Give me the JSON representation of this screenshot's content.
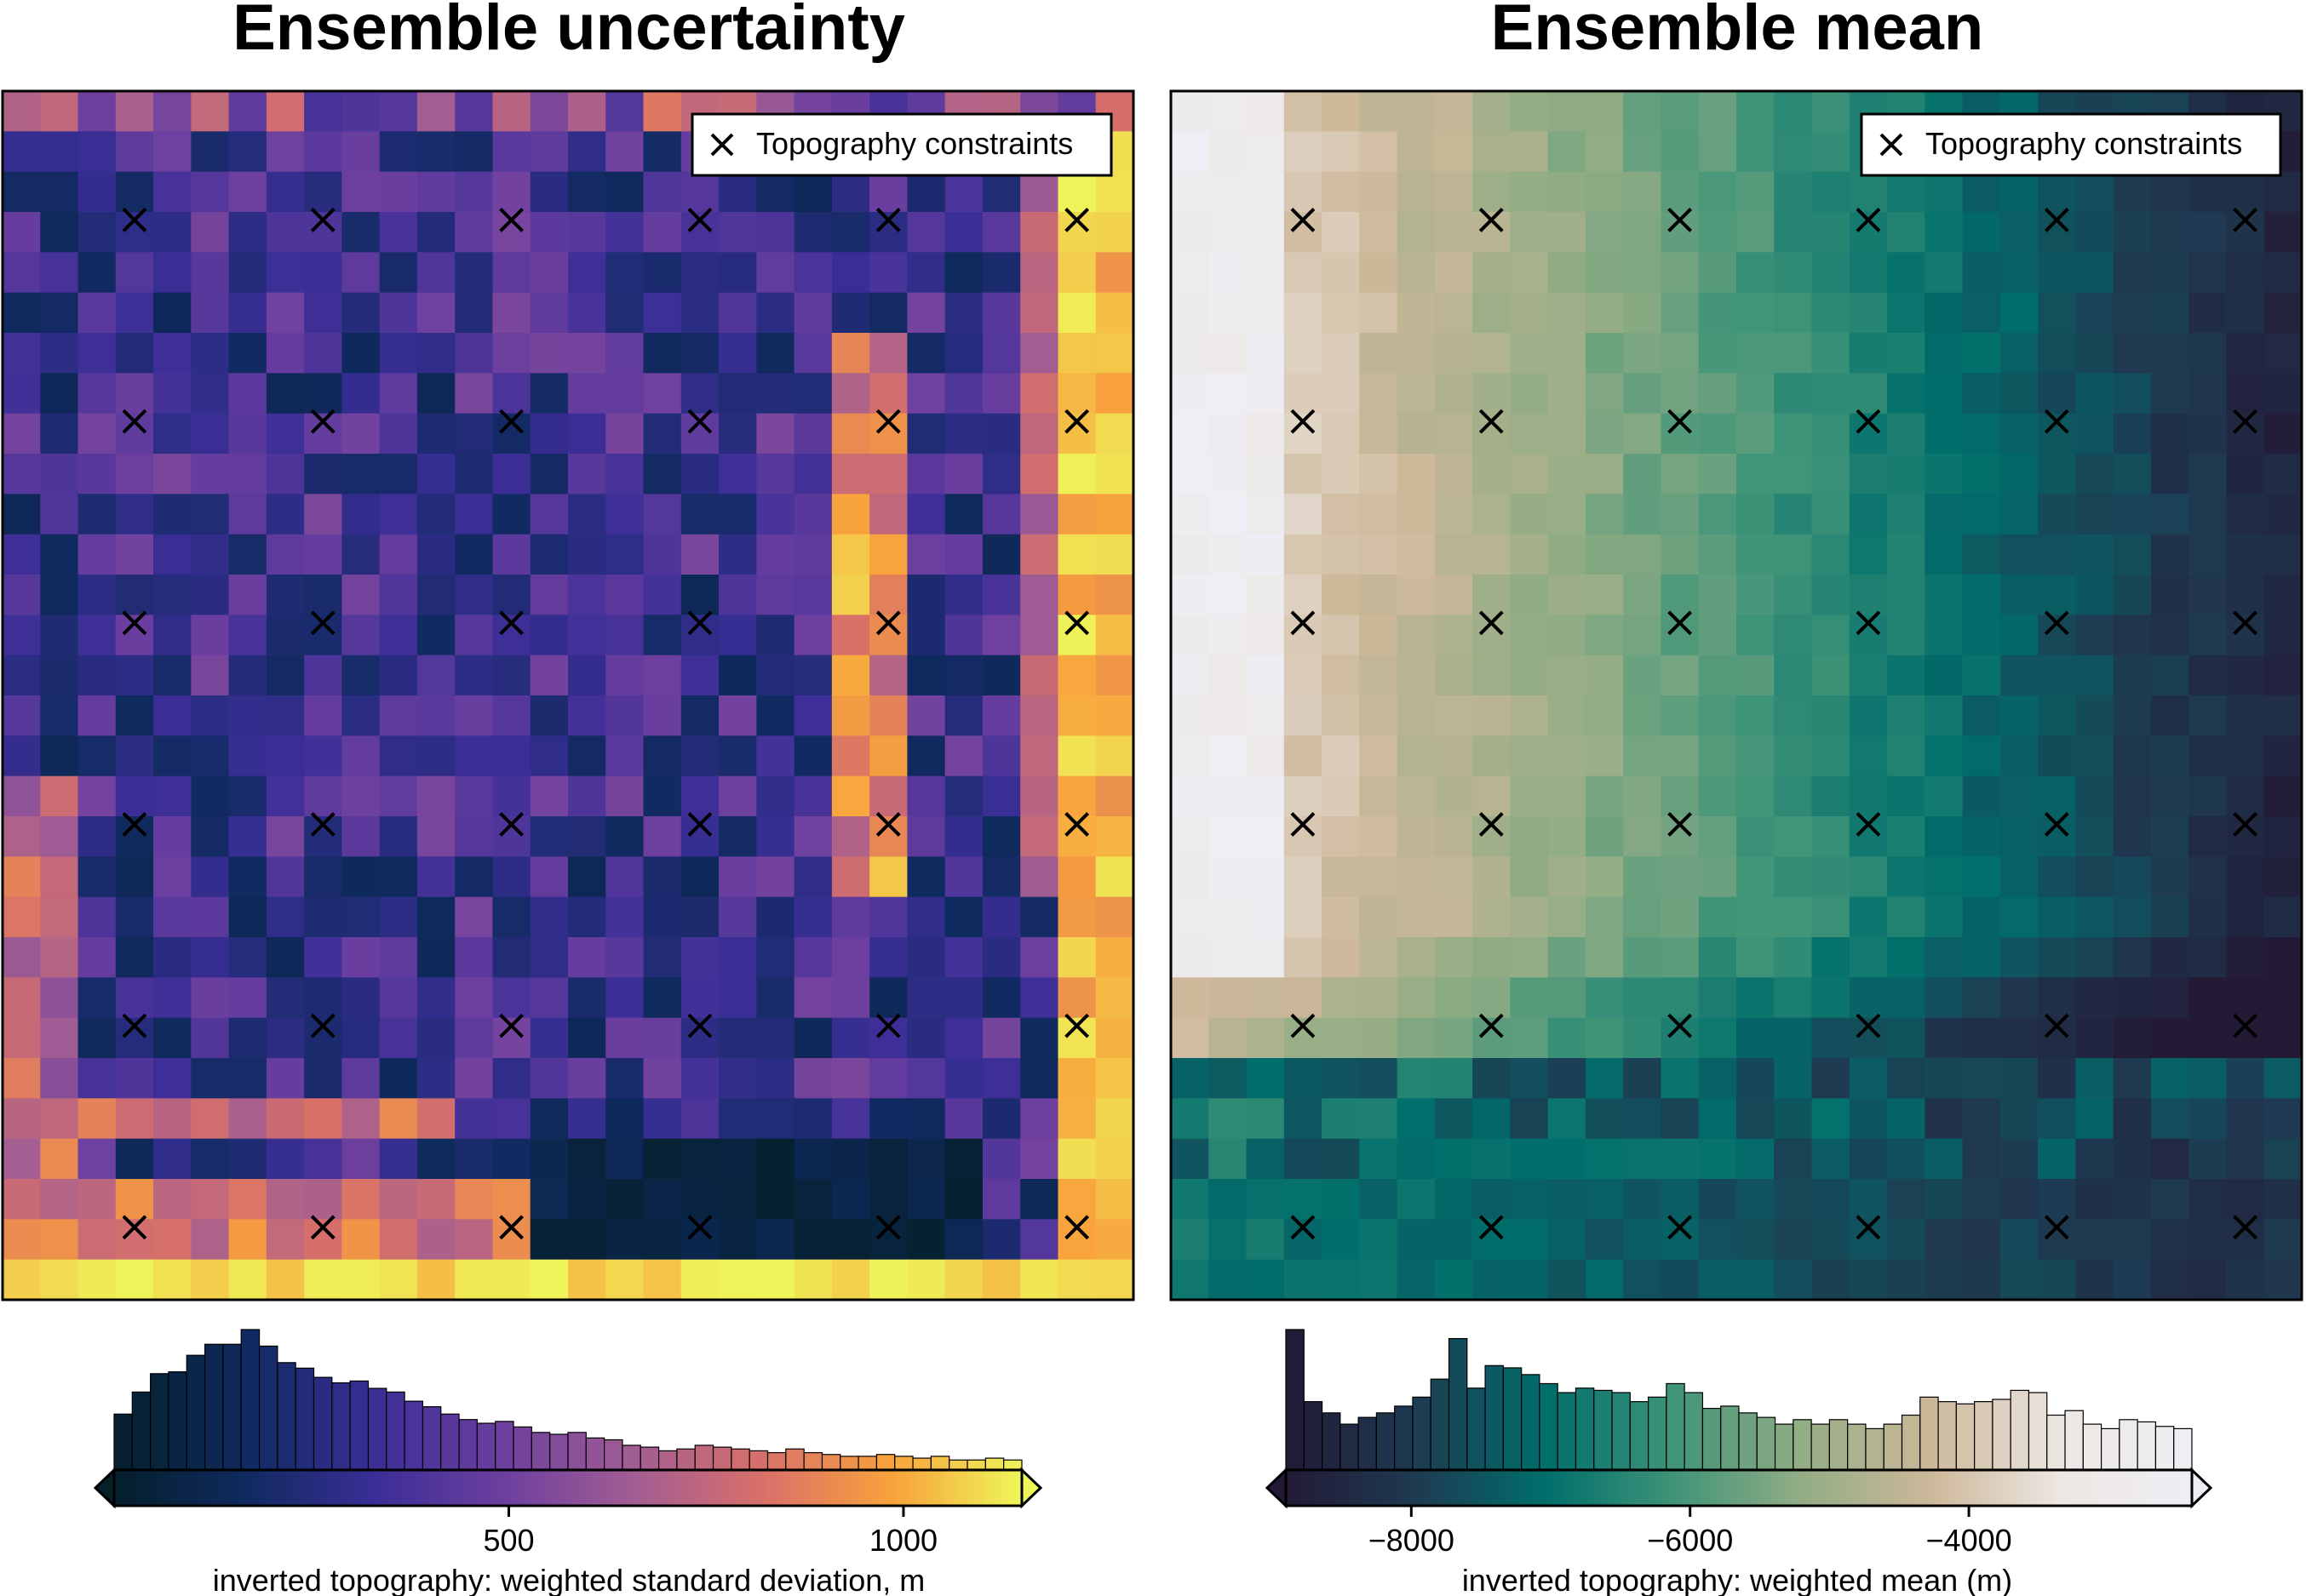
{
  "chart_data": [
    {
      "type": "heatmap",
      "title": "Ensemble uncertainty",
      "legend": {
        "entries": [
          "Topography constraints"
        ],
        "placement": "top-right",
        "marker": "cross"
      },
      "grid_size": [
        30,
        30
      ],
      "colormap": "plasma-like",
      "colormap_stops": [
        "#051f2b",
        "#0f2a5e",
        "#3a2e96",
        "#6c3f9f",
        "#a15d93",
        "#d8706a",
        "#f8a23c",
        "#eef65a"
      ],
      "value_range": [
        0,
        1180
      ],
      "constraints_grid": {
        "rows": 6,
        "cols": 6
      },
      "colorbar": {
        "label": "inverted topography: weighted standard deviation, m",
        "ticks": [
          500,
          1000
        ],
        "range": [
          0,
          1150
        ],
        "extend": "both"
      },
      "histogram": {
        "bins": 50,
        "counts": [
          30,
          42,
          52,
          53,
          62,
          68,
          68,
          76,
          67,
          58,
          55,
          50,
          47,
          48,
          44,
          42,
          37,
          34,
          30,
          27,
          25,
          26,
          23,
          20,
          19,
          20,
          17,
          16,
          13,
          12,
          10,
          11,
          13,
          12,
          11,
          10,
          9,
          11,
          9,
          8,
          7,
          7,
          8,
          7,
          6,
          7,
          5,
          5,
          6,
          5
        ]
      }
    },
    {
      "type": "heatmap",
      "title": "Ensemble mean",
      "legend": {
        "entries": [
          "Topography constraints"
        ],
        "placement": "top-right",
        "marker": "cross"
      },
      "grid_size": [
        30,
        30
      ],
      "colormap": "rain-like",
      "colormap_stops": [
        "#231a36",
        "#1e3a51",
        "#006e6b",
        "#3f9478",
        "#94ad85",
        "#cdb89a",
        "#ede7e3",
        "#eeeef4"
      ],
      "value_range": [
        -8900,
        -2200
      ],
      "constraints_grid": {
        "rows": 6,
        "cols": 6
      },
      "colorbar": {
        "label": "inverted topography: weighted mean (m)",
        "ticks": [
          -8000,
          -6000,
          -4000
        ],
        "range": [
          -8900,
          -2400
        ],
        "extend": "both"
      },
      "histogram": {
        "bins": 50,
        "counts": [
          62,
          30,
          25,
          20,
          23,
          25,
          28,
          32,
          40,
          58,
          36,
          46,
          45,
          42,
          38,
          34,
          36,
          35,
          34,
          30,
          32,
          38,
          34,
          27,
          28,
          25,
          23,
          20,
          22,
          20,
          22,
          20,
          18,
          20,
          24,
          32,
          30,
          29,
          30,
          31,
          35,
          34,
          24,
          26,
          20,
          18,
          22,
          21,
          19,
          18
        ]
      }
    }
  ]
}
